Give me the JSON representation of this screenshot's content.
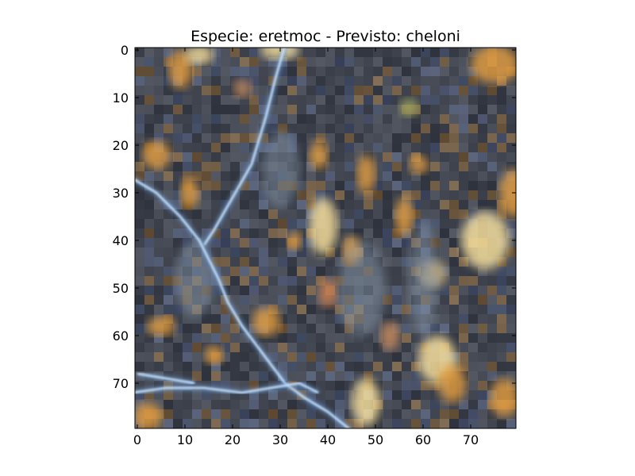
{
  "chart_data": {
    "type": "heatmap",
    "title": "Especie: eretmoc - Previsto: cheloni",
    "xlabel": "",
    "ylabel": "",
    "image_size": [
      80,
      80
    ],
    "xlim": [
      -0.5,
      79.5
    ],
    "ylim": [
      79.5,
      -0.5
    ],
    "x_ticks": [
      0,
      10,
      20,
      30,
      40,
      50,
      60,
      70
    ],
    "y_ticks": [
      0,
      10,
      20,
      30,
      40,
      50,
      60,
      70
    ],
    "grid": false,
    "content": "RGB image patch: dark grey-blue textured surface with orange/yellow highlights and bright bluish-white crack lines"
  },
  "colors": {
    "base": "#3a3f4a",
    "dark": "#20242c",
    "highlight": "#e8a040",
    "bright": "#ffe6a0",
    "crack": "#cfe6ff",
    "crack_edge": "#6fa0d8"
  }
}
